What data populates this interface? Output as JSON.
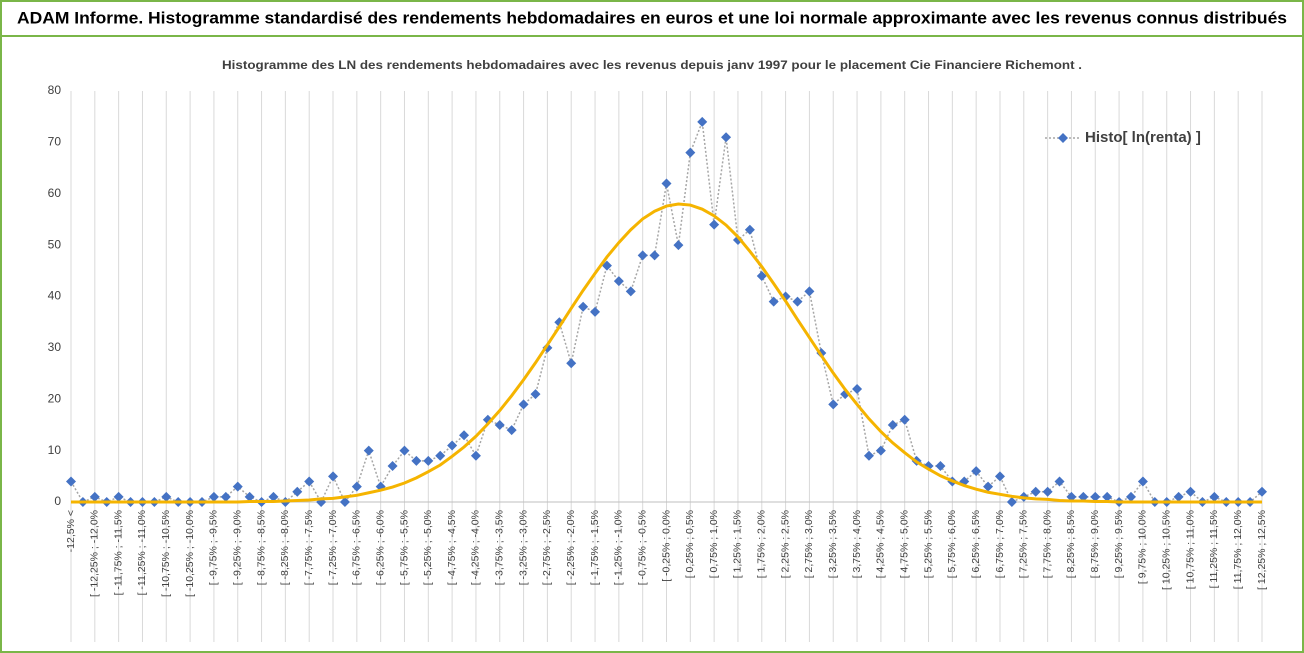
{
  "chart_data": {
    "type": "line",
    "page_title": "ADAM Informe. Histogramme standardisé des rendements hebdomadaires en euros et une loi normale approximante avec les revenus connus distribués",
    "title": "Histogramme  des LN des rendements hebdomadaires avec les revenus depuis janv 1997 pour le placement Cie Financiere Richemont .",
    "categories": [
      "-12,5% <",
      null,
      "[ -12,25% ; -12,0%",
      null,
      "[ -11,75% ; -11,5%",
      null,
      "[ -11,25% ; -11,0%",
      null,
      "[ -10,75% ; -10,5%",
      null,
      "[ -10,25% ; -10,0%",
      null,
      "[ -9,75% ; -9,5%",
      null,
      "[ -9,25% ; -9,0%",
      null,
      "[ -8,75% ; -8,5%",
      null,
      "[ -8,25% ; -8,0%",
      null,
      "[ -7,75% ; -7,5%",
      null,
      "[ -7,25% ; -7,0%",
      null,
      "[ -6,75% ; -6,5%",
      null,
      "[ -6,25% ; -6,0%",
      null,
      "[ -5,75% ; -5,5%",
      null,
      "[ -5,25% ; -5,0%",
      null,
      "[ -4,75% ; -4,5%",
      null,
      "[ -4,25% ; -4,0%",
      null,
      "[ -3,75% ; -3,5%",
      null,
      "[ -3,25% ; -3,0%",
      null,
      "[ -2,75% ; -2,5%",
      null,
      "[ -2,25% ; -2,0%",
      null,
      "[ -1,75% ; -1,5%",
      null,
      "[ -1,25% ; -1,0%",
      null,
      "[ -0,75% ; -0,5%",
      null,
      "[ -0,25% ; 0,0%",
      null,
      "[ 0,25% ; 0,5%",
      null,
      "[ 0,75% ; 1,0%",
      null,
      "[ 1,25% ; 1,5%",
      null,
      "[ 1,75% ; 2,0%",
      null,
      "[ 2,25% ; 2,5%",
      null,
      "[ 2,75% ; 3,0%",
      null,
      "[ 3,25% ; 3,5%",
      null,
      "[ 3,75% ; 4,0%",
      null,
      "[ 4,25% ; 4,5%",
      null,
      "[ 4,75% ; 5,0%",
      null,
      "[ 5,25% ; 5,5%",
      null,
      "[ 5,75% ; 6,0%",
      null,
      "[ 6,25% ; 6,5%",
      null,
      "[ 6,75% ; 7,0%",
      null,
      "[ 7,25% ; 7,5%",
      null,
      "[ 7,75% ; 8,0%",
      null,
      "[ 8,25% ; 8,5%",
      null,
      "[ 8,75% ; 9,0%",
      null,
      "[ 9,25% ; 9,5%",
      null,
      "[ 9,75% ; 10,0%",
      null,
      "[ 10,25% ; 10,5%",
      null,
      "[ 10,75% ; 11,0%",
      null,
      "[ 11,25% ; 11,5%",
      null,
      "[ 11,75% ; 12,0%",
      null,
      "[ 12,25% ; 12,5%"
    ],
    "series": [
      {
        "name": "Histo[ ln(renta) ]",
        "color": "#4472c4",
        "line_color": "#a6a6a6",
        "line_style": "dotted",
        "marker": "diamond",
        "values": [
          4,
          0,
          1,
          0,
          1,
          0,
          0,
          0,
          1,
          0,
          0,
          0,
          1,
          1,
          3,
          1,
          0,
          1,
          0,
          2,
          4,
          0,
          5,
          0,
          3,
          10,
          3,
          7,
          10,
          8,
          8,
          9,
          11,
          13,
          9,
          16,
          15,
          14,
          19,
          21,
          30,
          35,
          27,
          38,
          37,
          46,
          43,
          41,
          48,
          48,
          62,
          50,
          68,
          74,
          54,
          71,
          51,
          53,
          44,
          39,
          40,
          39,
          41,
          29,
          19,
          21,
          22,
          9,
          10,
          15,
          16,
          8,
          7,
          7,
          4,
          4,
          6,
          3,
          5,
          0,
          1,
          2,
          2,
          4,
          1,
          1,
          1,
          1,
          0,
          1,
          4,
          0,
          0,
          1,
          2,
          0,
          1,
          0,
          0,
          0,
          2
        ]
      },
      {
        "color": "#f5b400",
        "line_style": "solid",
        "values": [
          0,
          0,
          0,
          0,
          0,
          0,
          0,
          0,
          0,
          0,
          0,
          0,
          0,
          0,
          0,
          0.1,
          0.1,
          0.1,
          0.2,
          0.3,
          0.4,
          0.6,
          0.7,
          1.0,
          1.3,
          1.8,
          2.3,
          2.9,
          3.7,
          4.7,
          5.9,
          7.2,
          8.9,
          10.7,
          12.8,
          15.2,
          17.8,
          20.7,
          23.8,
          27.1,
          30.6,
          34.1,
          37.7,
          41.2,
          44.5,
          47.7,
          50.5,
          53.0,
          55.1,
          56.6,
          57.6,
          58.0,
          57.8,
          57.0,
          55.7,
          53.9,
          51.6,
          48.8,
          45.8,
          42.5,
          39.1,
          35.5,
          32.0,
          28.5,
          25.1,
          21.9,
          19.0,
          16.2,
          13.7,
          11.5,
          9.6,
          7.8,
          6.4,
          5.1,
          4.1,
          3.2,
          2.5,
          1.9,
          1.5,
          1.1,
          0.8,
          0.6,
          0.5,
          0.3,
          0.2,
          0.2,
          0.1,
          0.1,
          0,
          0,
          0,
          0,
          0,
          0,
          0,
          0,
          0,
          0,
          0,
          0,
          0
        ]
      }
    ],
    "ylim": [
      0,
      80
    ],
    "yticks": [
      0,
      10,
      20,
      30,
      40,
      50,
      60,
      70,
      80
    ],
    "x_grid": true,
    "legend": "upper right",
    "frame_color": "#7ab648"
  }
}
